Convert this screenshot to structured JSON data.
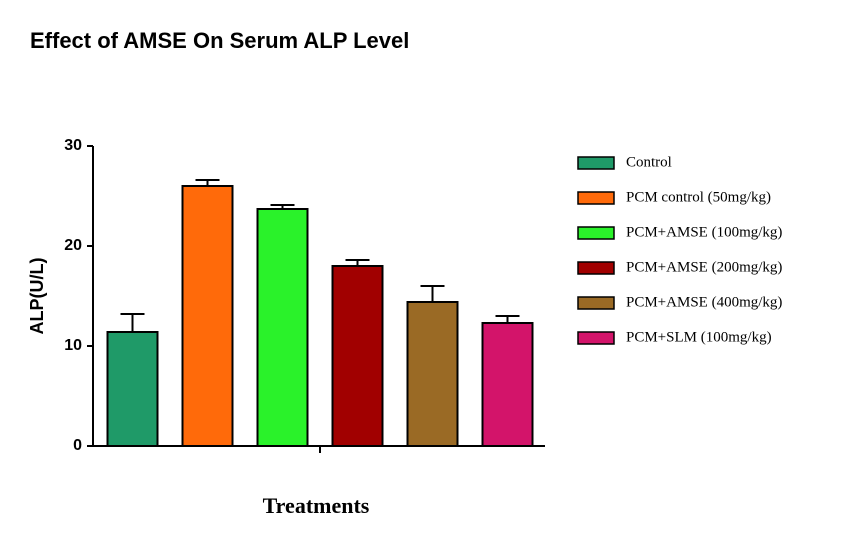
{
  "chart_data": {
    "type": "bar",
    "title": "Effect of AMSE On Serum ALP Level",
    "y_label": "ALP(U/L)",
    "x_label": "Treatments",
    "categories": [
      "Control",
      "PCM control (50mg/kg)",
      "PCM+AMSE (100mg/kg)",
      "PCM+AMSE (200mg/kg)",
      "PCM+AMSE (400mg/kg)",
      "PCM+SLM (100mg/kg)"
    ],
    "values": [
      11.4,
      26.0,
      23.7,
      18.0,
      14.4,
      12.3
    ],
    "errors": [
      1.8,
      0.6,
      0.4,
      0.6,
      1.6,
      0.7
    ],
    "colors": [
      "#1f9a68",
      "#ff6a0a",
      "#2af22a",
      "#a10000",
      "#9a6a25",
      "#d3146a"
    ],
    "ylim": [
      0,
      30
    ],
    "yticks": [
      0,
      10,
      20,
      30
    ],
    "legend": "right"
  }
}
